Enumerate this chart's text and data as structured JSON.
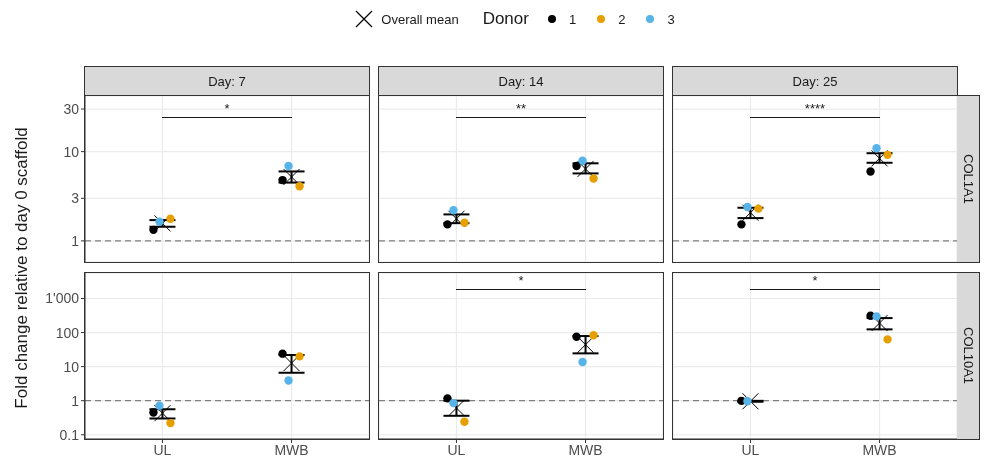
{
  "chart_data": [
    {
      "type": "scatter",
      "title": "Day: 7",
      "ylabel": "Fold change relative to day 0 scaffold",
      "legend": "top",
      "legend_title": "Donor",
      "marker": "circle",
      "log": "y",
      "grid": true,
      "tick_labels": "y",
      "categories": [
        "UL",
        "MWB"
      ],
      "ylim": [
        0.58,
        42
      ],
      "yticks": [
        1,
        3,
        10,
        30
      ],
      "series": [
        {
          "name": "Overall mean",
          "marker": "cross",
          "color": "#000000",
          "x": [
            "UL",
            "MWB"
          ],
          "values": [
            1.57,
            5.2
          ],
          "errors": [
            [
              1.44,
              1.71
            ],
            [
              4.5,
              6.0
            ]
          ]
        },
        {
          "name": "1",
          "color": "#000000",
          "x": [
            "UL",
            "MWB"
          ],
          "values": [
            1.33,
            4.8
          ]
        },
        {
          "name": "2",
          "color": "#e69f00",
          "x": [
            "UL",
            "MWB"
          ],
          "values": [
            1.77,
            4.1
          ]
        },
        {
          "name": "3",
          "color": "#56b4e9",
          "x": [
            "UL",
            "MWB"
          ],
          "values": [
            1.64,
            6.9
          ]
        }
      ],
      "ref_lines": [
        {
          "axis": "y",
          "value": 1,
          "color": "#808080",
          "line_style": "dashed"
        }
      ],
      "annotations": [
        "*"
      ]
    },
    {
      "type": "scatter",
      "title": "Day: 14",
      "marker": "circle",
      "log": "y",
      "grid": true,
      "tick_labels": false,
      "categories": [
        "UL",
        "MWB"
      ],
      "ylim": [
        0.58,
        42
      ],
      "yticks": [
        1,
        3,
        10,
        30
      ],
      "series": [
        {
          "marker": "cross",
          "color": "#000000",
          "x": [
            "UL",
            "MWB"
          ],
          "values": [
            1.77,
            6.4
          ],
          "errors": [
            [
              1.58,
              1.98
            ],
            [
              5.7,
              7.4
            ]
          ]
        },
        {
          "color": "#000000",
          "x": [
            "UL",
            "MWB"
          ],
          "values": [
            1.53,
            6.9
          ]
        },
        {
          "color": "#e69f00",
          "x": [
            "UL",
            "MWB"
          ],
          "values": [
            1.6,
            5.0
          ]
        },
        {
          "color": "#56b4e9",
          "x": [
            "UL",
            "MWB"
          ],
          "values": [
            2.2,
            7.9
          ]
        }
      ],
      "ref_lines": [
        {
          "axis": "y",
          "value": 1,
          "color": "#808080",
          "line_style": "dashed"
        }
      ],
      "annotations": [
        "**"
      ]
    },
    {
      "type": "scatter",
      "title": "Day: 25",
      "subtitle": "COL1A1",
      "marker": "circle",
      "log": "y",
      "grid": true,
      "tick_labels": false,
      "categories": [
        "UL",
        "MWB"
      ],
      "ylim": [
        0.58,
        42
      ],
      "yticks": [
        1,
        3,
        10,
        30
      ],
      "series": [
        {
          "marker": "cross",
          "color": "#000000",
          "x": [
            "UL",
            "MWB"
          ],
          "values": [
            2.07,
            8.4
          ],
          "errors": [
            [
              1.8,
              2.35
            ],
            [
              7.5,
              9.6
            ]
          ]
        },
        {
          "color": "#000000",
          "x": [
            "UL",
            "MWB"
          ],
          "values": [
            1.53,
            6.0
          ]
        },
        {
          "color": "#e69f00",
          "x": [
            "UL",
            "MWB"
          ],
          "values": [
            2.3,
            9.2
          ]
        },
        {
          "color": "#56b4e9",
          "x": [
            "UL",
            "MWB"
          ],
          "values": [
            2.4,
            10.9
          ]
        }
      ],
      "ref_lines": [
        {
          "axis": "y",
          "value": 1,
          "color": "#808080",
          "line_style": "dashed"
        }
      ],
      "annotations": [
        "****"
      ]
    },
    {
      "type": "scatter",
      "marker": "circle",
      "log": "y",
      "grid": true,
      "categories": [
        "UL",
        "MWB"
      ],
      "ylim": [
        0.075,
        5600
      ],
      "yticks": [
        0.1,
        1,
        10,
        100,
        {
          "value": 1000,
          "label": "1'000"
        }
      ],
      "series": [
        {
          "marker": "cross",
          "color": "#000000",
          "x": [
            "UL",
            "MWB"
          ],
          "values": [
            0.43,
            12.7
          ],
          "errors": [
            [
              0.3,
              0.56
            ],
            [
              6.6,
              21.9
            ]
          ]
        },
        {
          "color": "#000000",
          "x": [
            "UL",
            "MWB"
          ],
          "values": [
            0.45,
            24
          ]
        },
        {
          "color": "#e69f00",
          "x": [
            "UL",
            "MWB"
          ],
          "values": [
            0.22,
            20
          ]
        },
        {
          "color": "#56b4e9",
          "x": [
            "UL",
            "MWB"
          ],
          "values": [
            0.71,
            3.9
          ]
        }
      ],
      "ref_lines": [
        {
          "axis": "y",
          "value": 1,
          "color": "#808080",
          "line_style": "dashed"
        }
      ]
    },
    {
      "type": "scatter",
      "marker": "circle",
      "log": "y",
      "grid": true,
      "tick_labels": "x",
      "categories": [
        "UL",
        "MWB"
      ],
      "ylim": [
        0.075,
        5600
      ],
      "yticks": [
        0.1,
        1,
        10,
        100,
        1000
      ],
      "series": [
        {
          "marker": "cross",
          "color": "#000000",
          "x": [
            "UL",
            "MWB"
          ],
          "values": [
            0.61,
            44
          ],
          "errors": [
            [
              0.36,
              1.0
            ],
            [
              24.5,
              79
            ]
          ]
        },
        {
          "color": "#000000",
          "x": [
            "UL",
            "MWB"
          ],
          "values": [
            1.17,
            75
          ]
        },
        {
          "color": "#e69f00",
          "x": [
            "UL",
            "MWB"
          ],
          "values": [
            0.24,
            83
          ]
        },
        {
          "color": "#56b4e9",
          "x": [
            "UL",
            "MWB"
          ],
          "values": [
            0.85,
            13.6
          ]
        }
      ],
      "ref_lines": [
        {
          "axis": "y",
          "value": 1,
          "color": "#808080",
          "line_style": "dashed"
        }
      ],
      "annotations": [
        "*"
      ]
    },
    {
      "type": "scatter",
      "subtitle": "COL10A1",
      "marker": "circle",
      "log": "y",
      "grid": true,
      "tick_labels": "x",
      "categories": [
        "UL",
        "MWB"
      ],
      "ylim": [
        0.075,
        5600
      ],
      "yticks": [
        0.1,
        1,
        10,
        100,
        1000
      ],
      "series": [
        {
          "marker": "cross",
          "color": "#000000",
          "x": [
            "UL",
            "MWB"
          ],
          "values": [
            0.96,
            190
          ],
          "errors": [
            [
              0.93,
              0.99
            ],
            [
              124,
              266
            ]
          ]
        },
        {
          "color": "#000000",
          "x": [
            "UL",
            "MWB"
          ],
          "values": [
            0.99,
            312
          ]
        },
        {
          "color": "#e69f00",
          "x": [
            "UL",
            "MWB"
          ],
          "values": [
            null,
            63
          ]
        },
        {
          "color": "#56b4e9",
          "x": [
            "UL",
            "MWB"
          ],
          "values": [
            0.96,
            298
          ]
        }
      ],
      "ref_lines": [
        {
          "axis": "y",
          "value": 1,
          "color": "#808080",
          "line_style": "dashed"
        }
      ],
      "annotations": [
        "*"
      ]
    }
  ]
}
